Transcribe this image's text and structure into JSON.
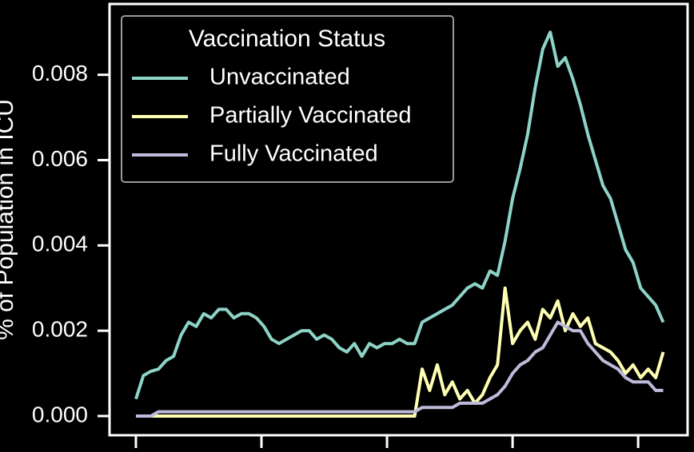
{
  "chart_data": {
    "type": "line",
    "ylabel": "% of Population in ICU",
    "legend_title": "Vaccination Status",
    "legend": "upper left",
    "x": [
      0,
      3,
      6,
      9,
      12,
      15,
      18,
      21,
      24,
      27,
      30,
      33,
      36,
      39,
      42,
      45,
      48,
      51,
      54,
      57,
      60,
      63,
      66,
      69,
      72,
      75,
      78,
      81,
      84,
      87,
      90,
      93,
      96,
      99,
      102,
      105,
      108,
      111,
      114,
      117,
      120,
      123,
      126,
      129,
      132,
      135,
      138,
      141,
      144,
      147,
      150,
      153,
      156,
      159,
      162,
      165,
      168,
      171,
      174,
      177,
      180,
      183,
      186,
      189,
      192,
      195,
      198,
      201,
      204,
      207,
      210
    ],
    "xlim": [
      -10.5,
      219.7
    ],
    "xticks": [
      0,
      50,
      100,
      150,
      200
    ],
    "ylim": [
      -0.00045,
      0.00966
    ],
    "yticks": [
      {
        "value": 0,
        "label": "0.000"
      },
      {
        "value": 0.002,
        "label": "0.002"
      },
      {
        "value": 0.004,
        "label": "0.004"
      },
      {
        "value": 0.006,
        "label": "0.006"
      },
      {
        "value": 0.008,
        "label": "0.008"
      }
    ],
    "series": [
      {
        "name": "Unvaccinated",
        "color": "#8dd3c7",
        "values": [
          0.0004,
          0.00095,
          0.00105,
          0.0011,
          0.0013,
          0.0014,
          0.0019,
          0.0022,
          0.0021,
          0.0024,
          0.0023,
          0.0025,
          0.0025,
          0.0023,
          0.0024,
          0.0024,
          0.0023,
          0.0021,
          0.0018,
          0.0017,
          0.0018,
          0.0019,
          0.002,
          0.002,
          0.0018,
          0.0019,
          0.0018,
          0.0016,
          0.0015,
          0.0017,
          0.0014,
          0.0017,
          0.0016,
          0.0017,
          0.0017,
          0.0018,
          0.0017,
          0.0017,
          0.0022,
          0.0023,
          0.0024,
          0.0025,
          0.0026,
          0.0028,
          0.003,
          0.0031,
          0.003,
          0.0034,
          0.0033,
          0.0041,
          0.0051,
          0.0058,
          0.0066,
          0.0077,
          0.0086,
          0.009,
          0.0082,
          0.0084,
          0.0079,
          0.0073,
          0.0066,
          0.006,
          0.0054,
          0.0051,
          0.0045,
          0.0039,
          0.0036,
          0.003,
          0.0028,
          0.0026,
          0.0022
        ]
      },
      {
        "name": "Partially Vaccinated",
        "color": "#ffffb3",
        "values": [
          0,
          0,
          0,
          0,
          0,
          0,
          0,
          0,
          0,
          0,
          0,
          0,
          0,
          0,
          0,
          0,
          0,
          0,
          0,
          0,
          0,
          0,
          0,
          0,
          0,
          0,
          0,
          0,
          0,
          0,
          0,
          0,
          0,
          0,
          0,
          0,
          0,
          0,
          0.0011,
          0.0006,
          0.0012,
          0.0005,
          0.0008,
          0.0004,
          0.0006,
          0.0003,
          0.0005,
          0.0009,
          0.0012,
          0.003,
          0.0017,
          0.002,
          0.0022,
          0.0018,
          0.0025,
          0.0023,
          0.0027,
          0.002,
          0.0024,
          0.0021,
          0.0023,
          0.0017,
          0.0016,
          0.0015,
          0.0013,
          0.001,
          0.0012,
          0.0009,
          0.0011,
          0.0009,
          0.0015
        ]
      },
      {
        "name": "Fully Vaccinated",
        "color": "#bebada",
        "values": [
          0,
          0,
          0,
          0.0001,
          0.0001,
          0.0001,
          0.0001,
          0.0001,
          0.0001,
          0.0001,
          0.0001,
          0.0001,
          0.0001,
          0.0001,
          0.0001,
          0.0001,
          0.0001,
          0.0001,
          0.0001,
          0.0001,
          0.0001,
          0.0001,
          0.0001,
          0.0001,
          0.0001,
          0.0001,
          0.0001,
          0.0001,
          0.0001,
          0.0001,
          0.0001,
          0.0001,
          0.0001,
          0.0001,
          0.0001,
          0.0001,
          0.0001,
          0.0001,
          0.0002,
          0.0002,
          0.0002,
          0.0002,
          0.0002,
          0.0003,
          0.0003,
          0.0003,
          0.0003,
          0.0004,
          0.0005,
          0.0007,
          0.001,
          0.0012,
          0.0013,
          0.0015,
          0.0016,
          0.0019,
          0.0022,
          0.0021,
          0.002,
          0.002,
          0.0017,
          0.0015,
          0.0013,
          0.0012,
          0.0011,
          0.0009,
          0.0008,
          0.0008,
          0.0008,
          0.0006,
          0.0006
        ]
      }
    ]
  }
}
